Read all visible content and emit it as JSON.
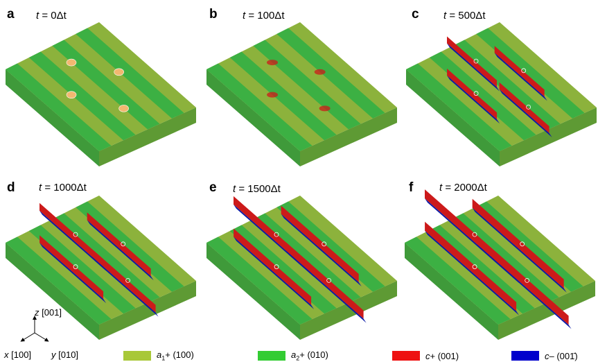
{
  "panels": [
    {
      "letter": "a",
      "time_var": "t",
      "time_value": "0Δt"
    },
    {
      "letter": "b",
      "time_var": "t",
      "time_value": "100Δt"
    },
    {
      "letter": "c",
      "time_var": "t",
      "time_value": "500Δt"
    },
    {
      "letter": "d",
      "time_var": "t",
      "time_value": "1000Δt"
    },
    {
      "letter": "e",
      "time_var": "t",
      "time_value": "1500Δt"
    },
    {
      "letter": "f",
      "time_var": "t",
      "time_value": "2000Δt"
    }
  ],
  "axes": {
    "z": {
      "name": "z",
      "dir": "[001]"
    },
    "x": {
      "name": "x",
      "dir": "[100]"
    },
    "y": {
      "name": "y",
      "dir": "[010]"
    }
  },
  "legend": [
    {
      "sym": "a",
      "sub": "1",
      "rest": "+ (100)",
      "color": "#a8c838"
    },
    {
      "sym": "a",
      "sub": "2",
      "rest": "+ (010)",
      "color": "#33cc33"
    },
    {
      "sym": "c",
      "sub": "",
      "rest": "+ (001)",
      "color": "#ee1111"
    },
    {
      "sym": "c",
      "sub": "",
      "rest": "– (001̄)",
      "color": "#0000cc"
    }
  ],
  "colors": {
    "a1_plus": "#8cb23c",
    "a2_plus": "#3cb043",
    "c_plus": "#cc1a1a",
    "c_minus": "#0a1aa8",
    "nucleus": "#f2b870"
  }
}
